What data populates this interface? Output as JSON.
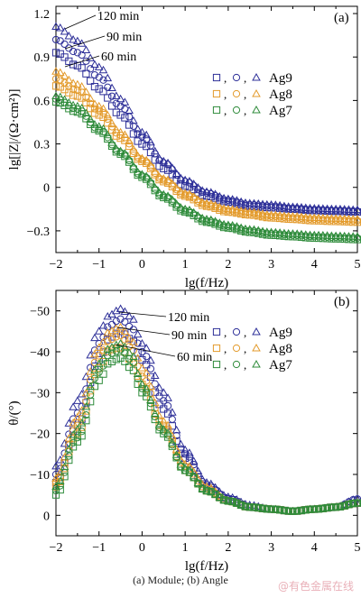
{
  "caption": "(a) Module; (b) Angle",
  "watermark": "@有色金属在线",
  "legend_separator": ",",
  "colors": {
    "Ag9": "#2d2f98",
    "Ag8": "#e39a2b",
    "Ag7": "#2e8b3a"
  },
  "chart_data": [
    {
      "type": "scatter",
      "panel_label": "(a)",
      "xlabel": "lg(f/Hz)",
      "ylabel": "lg[|Z|/(Ω·cm²)]",
      "xlim": [
        -2,
        5
      ],
      "ylim": [
        -0.45,
        1.25
      ],
      "xticks": [
        -2,
        -1,
        0,
        1,
        2,
        3,
        4,
        5
      ],
      "yticks": [
        -0.3,
        0,
        0.3,
        0.6,
        0.9,
        1.2
      ],
      "ytick_labels": [
        "-0.3",
        "0",
        "0.3",
        "0.6",
        "0.9",
        "1.2"
      ],
      "grid": false,
      "legend_position": "right",
      "annotations": [
        "120 min",
        "90 min",
        "60 min"
      ],
      "series": [
        {
          "name": "Ag9",
          "marker": "square",
          "x": [
            -2,
            -1.5,
            -1,
            -0.5,
            0,
            0.5,
            1,
            1.5,
            2,
            2.5,
            3,
            3.5,
            4,
            4.5,
            5
          ],
          "y": [
            0.93,
            0.84,
            0.68,
            0.5,
            0.3,
            0.13,
            0.01,
            -0.06,
            -0.1,
            -0.13,
            -0.14,
            -0.15,
            -0.16,
            -0.165,
            -0.17
          ]
        },
        {
          "name": "Ag9",
          "marker": "circle",
          "x": [
            -2,
            -1.5,
            -1,
            -0.5,
            0,
            0.5,
            1,
            1.5,
            2,
            2.5,
            3,
            3.5,
            4,
            4.5,
            5
          ],
          "y": [
            1.02,
            0.93,
            0.76,
            0.56,
            0.35,
            0.17,
            0.04,
            -0.04,
            -0.09,
            -0.12,
            -0.13,
            -0.145,
            -0.155,
            -0.16,
            -0.165
          ]
        },
        {
          "name": "Ag9",
          "marker": "triangle",
          "x": [
            -2,
            -1.5,
            -1,
            -0.5,
            0,
            0.5,
            1,
            1.5,
            2,
            2.5,
            3,
            3.5,
            4,
            4.5,
            5
          ],
          "y": [
            1.11,
            1.01,
            0.83,
            0.61,
            0.38,
            0.18,
            0.05,
            -0.03,
            -0.08,
            -0.11,
            -0.12,
            -0.135,
            -0.145,
            -0.15,
            -0.155
          ]
        },
        {
          "name": "Ag8",
          "marker": "square",
          "x": [
            -2,
            -1.5,
            -1,
            -0.5,
            0,
            0.5,
            1,
            1.5,
            2,
            2.5,
            3,
            3.5,
            4,
            4.5,
            5
          ],
          "y": [
            0.7,
            0.63,
            0.5,
            0.34,
            0.18,
            0.04,
            -0.06,
            -0.13,
            -0.17,
            -0.19,
            -0.21,
            -0.22,
            -0.23,
            -0.235,
            -0.24
          ]
        },
        {
          "name": "Ag8",
          "marker": "circle",
          "x": [
            -2,
            -1.5,
            -1,
            -0.5,
            0,
            0.5,
            1,
            1.5,
            2,
            2.5,
            3,
            3.5,
            4,
            4.5,
            5
          ],
          "y": [
            0.75,
            0.67,
            0.53,
            0.36,
            0.19,
            0.05,
            -0.05,
            -0.12,
            -0.16,
            -0.18,
            -0.2,
            -0.21,
            -0.22,
            -0.225,
            -0.23
          ]
        },
        {
          "name": "Ag8",
          "marker": "triangle",
          "x": [
            -2,
            -1.5,
            -1,
            -0.5,
            0,
            0.5,
            1,
            1.5,
            2,
            2.5,
            3,
            3.5,
            4,
            4.5,
            5
          ],
          "y": [
            0.8,
            0.71,
            0.56,
            0.38,
            0.2,
            0.06,
            -0.04,
            -0.11,
            -0.15,
            -0.17,
            -0.19,
            -0.2,
            -0.21,
            -0.215,
            -0.22
          ]
        },
        {
          "name": "Ag7",
          "marker": "square",
          "x": [
            -2,
            -1.5,
            -1,
            -0.5,
            0,
            0.5,
            1,
            1.5,
            2,
            2.5,
            3,
            3.5,
            4,
            4.5,
            5
          ],
          "y": [
            0.59,
            0.52,
            0.39,
            0.23,
            0.07,
            -0.07,
            -0.17,
            -0.24,
            -0.28,
            -0.31,
            -0.33,
            -0.34,
            -0.35,
            -0.355,
            -0.36
          ]
        },
        {
          "name": "Ag7",
          "marker": "circle",
          "x": [
            -2,
            -1.5,
            -1,
            -0.5,
            0,
            0.5,
            1,
            1.5,
            2,
            2.5,
            3,
            3.5,
            4,
            4.5,
            5
          ],
          "y": [
            0.61,
            0.54,
            0.4,
            0.24,
            0.08,
            -0.06,
            -0.16,
            -0.23,
            -0.27,
            -0.3,
            -0.32,
            -0.33,
            -0.34,
            -0.345,
            -0.35
          ]
        },
        {
          "name": "Ag7",
          "marker": "triangle",
          "x": [
            -2,
            -1.5,
            -1,
            -0.5,
            0,
            0.5,
            1,
            1.5,
            2,
            2.5,
            3,
            3.5,
            4,
            4.5,
            5
          ],
          "y": [
            0.63,
            0.56,
            0.42,
            0.25,
            0.09,
            -0.05,
            -0.15,
            -0.22,
            -0.26,
            -0.29,
            -0.31,
            -0.32,
            -0.33,
            -0.335,
            -0.34
          ]
        }
      ]
    },
    {
      "type": "scatter",
      "panel_label": "(b)",
      "xlabel": "lg(f/Hz)",
      "ylabel": "θ/(°)",
      "xlim": [
        -2,
        5
      ],
      "ylim": [
        5,
        -55
      ],
      "xticks": [
        -2,
        -1,
        0,
        1,
        2,
        3,
        4,
        5
      ],
      "yticks": [
        0,
        -10,
        -20,
        -30,
        -40,
        -50
      ],
      "ytick_labels": [
        "0",
        "-10",
        "-20",
        "-30",
        "-40",
        "-50"
      ],
      "grid": false,
      "legend_position": "right",
      "annotations": [
        "120 min",
        "90 min",
        "60 min"
      ],
      "series": [
        {
          "name": "Ag9",
          "marker": "square",
          "x": [
            -2,
            -1.5,
            -1,
            -0.75,
            -0.5,
            -0.25,
            0,
            0.5,
            1,
            1.5,
            2,
            2.5,
            3,
            3.5,
            4,
            4.5,
            5
          ],
          "y": [
            -8,
            -22,
            -38,
            -43.5,
            -45,
            -43,
            -38,
            -26,
            -14,
            -7,
            -4,
            -2,
            -1.5,
            -1,
            -1.5,
            -2,
            -3
          ]
        },
        {
          "name": "Ag9",
          "marker": "circle",
          "x": [
            -2,
            -1.5,
            -1,
            -0.75,
            -0.5,
            -0.25,
            0,
            0.5,
            1,
            1.5,
            2,
            2.5,
            3,
            3.5,
            4,
            4.5,
            5
          ],
          "y": [
            -10,
            -25,
            -42,
            -46.5,
            -48,
            -46,
            -40,
            -28,
            -15,
            -7.5,
            -4,
            -2,
            -1.5,
            -1,
            -1.5,
            -2,
            -4
          ]
        },
        {
          "name": "Ag9",
          "marker": "triangle",
          "x": [
            -2,
            -1.5,
            -1,
            -0.75,
            -0.5,
            -0.25,
            0,
            0.5,
            1,
            1.5,
            2,
            2.5,
            3,
            3.5,
            4,
            4.5,
            5
          ],
          "y": [
            -12,
            -28,
            -45,
            -49,
            -50.5,
            -48.5,
            -42,
            -30,
            -16,
            -8,
            -4.5,
            -2.5,
            -1.5,
            -1,
            -1.5,
            -2,
            -4
          ]
        },
        {
          "name": "Ag8",
          "marker": "square",
          "x": [
            -2,
            -1.5,
            -1,
            -0.75,
            -0.5,
            -0.25,
            0,
            0.5,
            1,
            1.5,
            2,
            2.5,
            3,
            3.5,
            4,
            4.5,
            5
          ],
          "y": [
            -7,
            -20,
            -36,
            -40.5,
            -41,
            -38,
            -32,
            -21,
            -11,
            -6,
            -3.5,
            -2,
            -1.5,
            -1,
            -1.5,
            -2,
            -3
          ]
        },
        {
          "name": "Ag8",
          "marker": "circle",
          "x": [
            -2,
            -1.5,
            -1,
            -0.75,
            -0.5,
            -0.25,
            0,
            0.5,
            1,
            1.5,
            2,
            2.5,
            3,
            3.5,
            4,
            4.5,
            5
          ],
          "y": [
            -8,
            -22,
            -39,
            -43,
            -44,
            -41,
            -34,
            -22,
            -12,
            -6.5,
            -3.5,
            -2,
            -1.5,
            -1,
            -1.5,
            -2,
            -3
          ]
        },
        {
          "name": "Ag8",
          "marker": "triangle",
          "x": [
            -2,
            -1.5,
            -1,
            -0.75,
            -0.5,
            -0.25,
            0,
            0.5,
            1,
            1.5,
            2,
            2.5,
            3,
            3.5,
            4,
            4.5,
            5
          ],
          "y": [
            -9,
            -24,
            -41,
            -45,
            -46,
            -43,
            -36,
            -23,
            -12.5,
            -7,
            -3.5,
            -2,
            -1.5,
            -1,
            -1.5,
            -2,
            -3
          ]
        },
        {
          "name": "Ag7",
          "marker": "square",
          "x": [
            -2,
            -1.5,
            -1,
            -0.75,
            -0.5,
            -0.25,
            0,
            0.5,
            1,
            1.5,
            2,
            2.5,
            3,
            3.5,
            4,
            4.5,
            5
          ],
          "y": [
            -5,
            -18,
            -33,
            -37.5,
            -38.5,
            -36,
            -30,
            -20,
            -11,
            -6,
            -3.5,
            -2,
            -1.5,
            -1,
            -1.5,
            -2,
            -3
          ]
        },
        {
          "name": "Ag7",
          "marker": "circle",
          "x": [
            -2,
            -1.5,
            -1,
            -0.75,
            -0.5,
            -0.25,
            0,
            0.5,
            1,
            1.5,
            2,
            2.5,
            3,
            3.5,
            4,
            4.5,
            5
          ],
          "y": [
            -6,
            -19,
            -35,
            -39.5,
            -40.5,
            -38,
            -31,
            -20.5,
            -11,
            -6,
            -3.5,
            -2,
            -1.5,
            -1,
            -1.5,
            -2,
            -3
          ]
        },
        {
          "name": "Ag7",
          "marker": "triangle",
          "x": [
            -2,
            -1.5,
            -1,
            -0.75,
            -0.5,
            -0.25,
            0,
            0.5,
            1,
            1.5,
            2,
            2.5,
            3,
            3.5,
            4,
            4.5,
            5
          ],
          "y": [
            -7,
            -21,
            -37,
            -41,
            -42,
            -39.5,
            -32,
            -21,
            -11.5,
            -6,
            -3.5,
            -2,
            -1.5,
            -1,
            -1.5,
            -2,
            -3
          ]
        }
      ]
    }
  ]
}
